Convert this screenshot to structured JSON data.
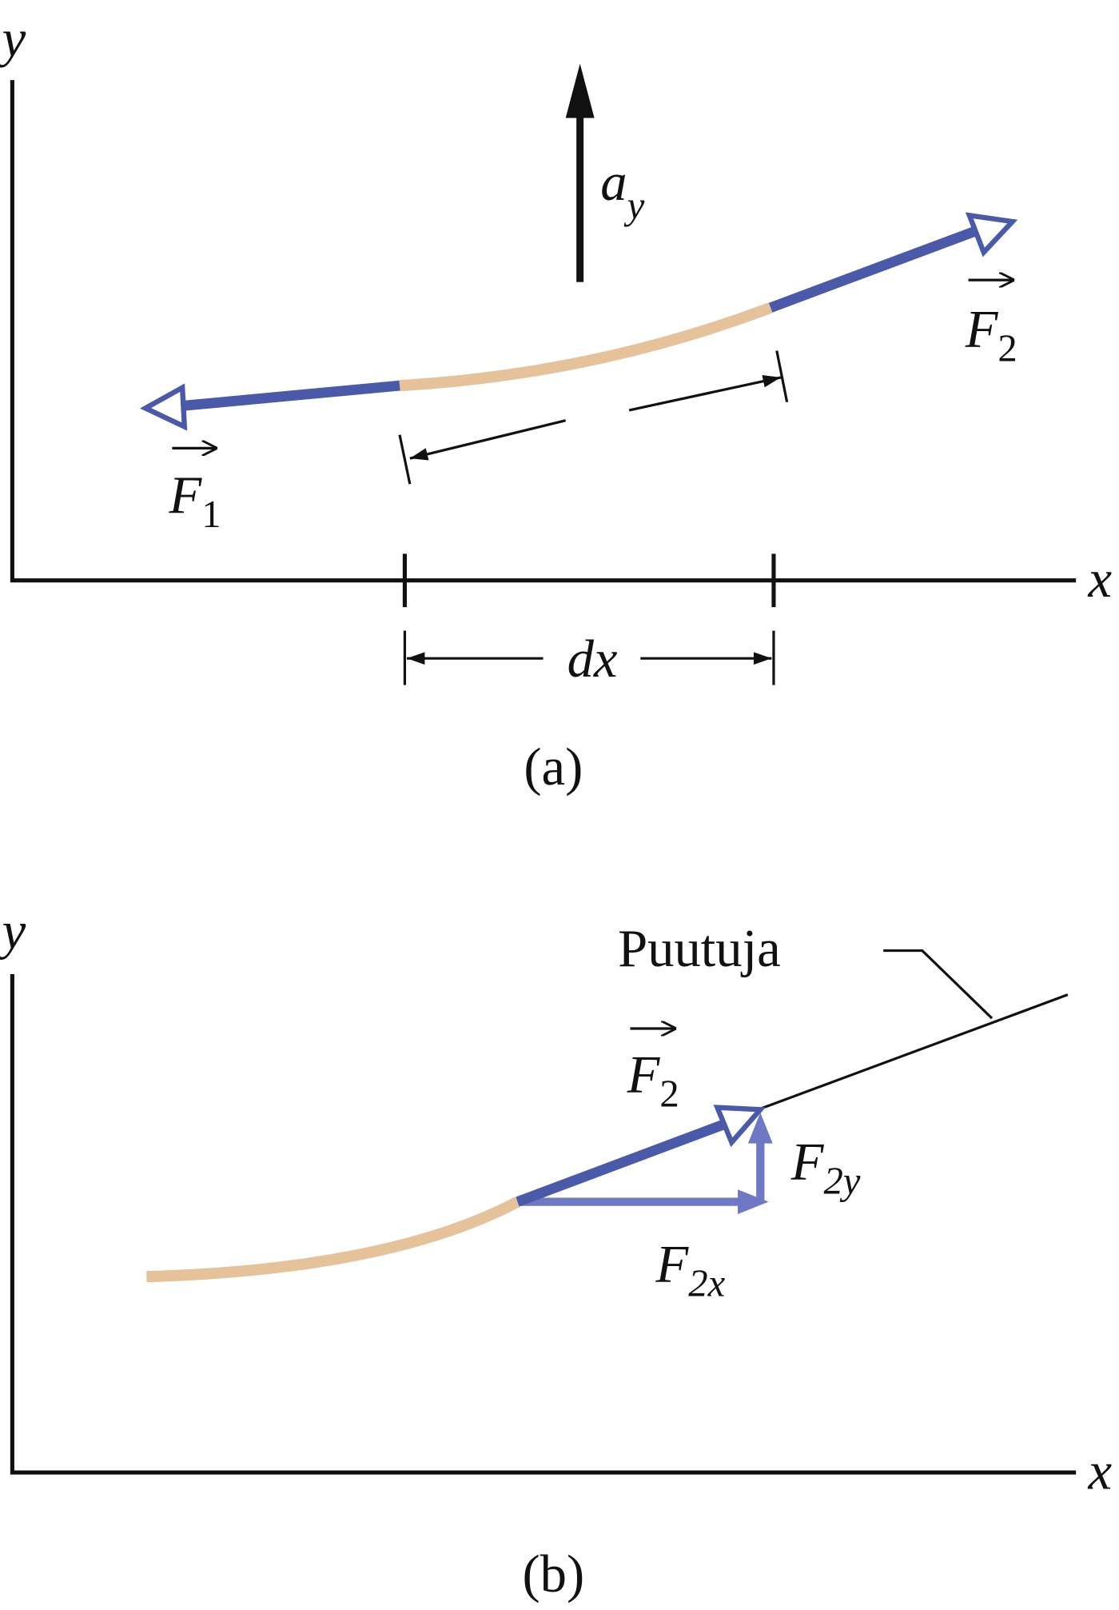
{
  "panel_a": {
    "axis_y": "y",
    "axis_x": "x",
    "acceleration": {
      "symbol": "a",
      "subscript": "y"
    },
    "force_1": {
      "symbol": "F",
      "subscript": "1"
    },
    "force_2": {
      "symbol": "F",
      "subscript": "2"
    },
    "width": "dx",
    "caption": "(a)"
  },
  "panel_b": {
    "axis_y": "y",
    "axis_x": "x",
    "tangent_label": "Puutuja",
    "force_2": {
      "symbol": "F",
      "subscript": "2"
    },
    "force_2y": {
      "symbol": "F",
      "subscript": "2y"
    },
    "force_2x": {
      "symbol": "F",
      "subscript": "2x"
    },
    "caption": "(b)"
  }
}
